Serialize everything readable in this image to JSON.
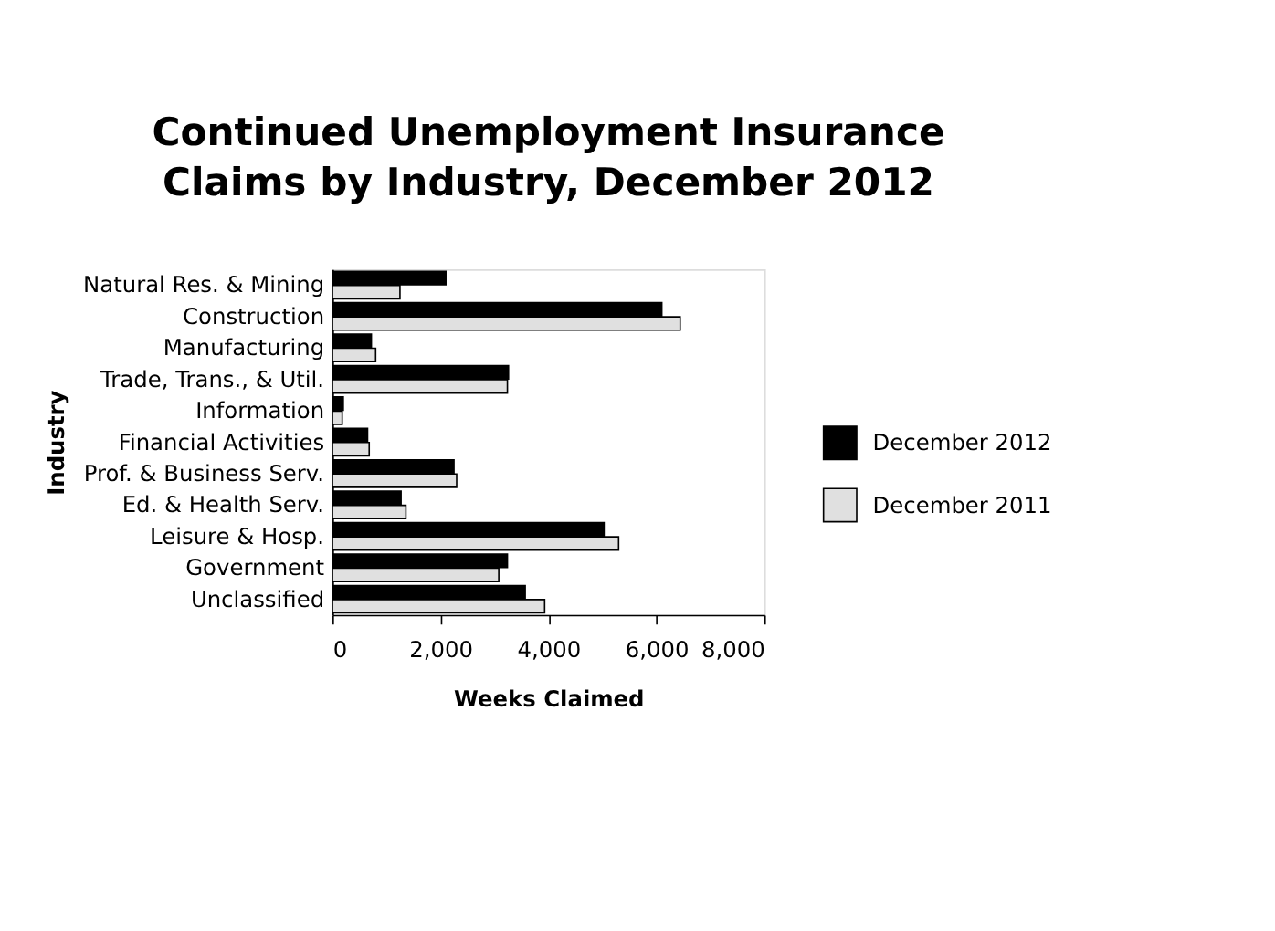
{
  "chart_data": {
    "type": "bar",
    "orientation": "horizontal",
    "title": "Continued Unemployment Insurance Claims by Industry, December 2012",
    "xlabel": "Weeks Claimed",
    "ylabel": "Industry",
    "categories": [
      "Natural Res. & Mining",
      "Construction",
      "Manufacturing",
      "Trade, Trans., & Util.",
      "Information",
      "Financial Activities",
      "Prof. & Business Serv.",
      "Ed. & Health Serv.",
      "Leisure & Hosp.",
      "Government",
      "Unclassified"
    ],
    "series": [
      {
        "name": "December 2012",
        "color": "#000000",
        "values": [
          2100,
          6100,
          720,
          3260,
          200,
          650,
          2250,
          1270,
          5030,
          3240,
          3570
        ]
      },
      {
        "name": "December 2011",
        "color": "#e0e0e0",
        "values": [
          1250,
          6440,
          800,
          3240,
          180,
          680,
          2300,
          1360,
          5300,
          3080,
          3930
        ]
      }
    ],
    "xlim": [
      0,
      8000
    ],
    "xticks": [
      0,
      {
        "value": 2000,
        "label": "2,000"
      },
      {
        "value": 4000,
        "label": "4,000"
      },
      {
        "value": 6000,
        "label": "6,000"
      },
      {
        "value": 8000,
        "label": "8,000"
      }
    ],
    "grid": false,
    "legend": "right"
  }
}
